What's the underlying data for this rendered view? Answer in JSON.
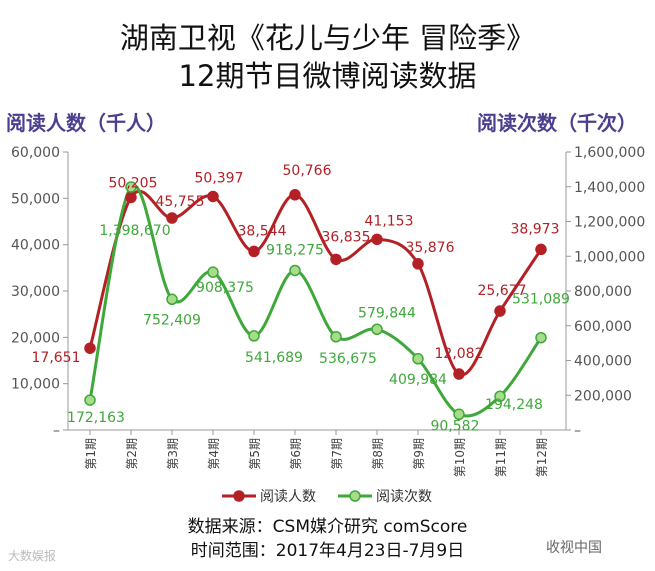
{
  "header": {
    "title_line1": "湖南卫视《花儿与少年 冒险季》",
    "title_line2": "12期节目微博阅读数据"
  },
  "footer": {
    "source": "数据来源：CSM媒介研究 comScore",
    "period": "时间范围：2017年4月23日-7月9日"
  },
  "watermarks": {
    "left": "大数娱报",
    "right": "收视中国"
  },
  "chart_data": {
    "type": "line",
    "left_axis_title": "阅读人数（千人）",
    "right_axis_title": "阅读次数（千次）",
    "categories": [
      "第1期",
      "第2期",
      "第3期",
      "第4期",
      "第5期",
      "第6期",
      "第7期",
      "第8期",
      "第9期",
      "第10期",
      "第11期",
      "第12期"
    ],
    "left_ylim": [
      0,
      60000
    ],
    "left_ticks": [
      "–",
      "10,000",
      "20,000",
      "30,000",
      "40,000",
      "50,000",
      "60,000"
    ],
    "right_ylim": [
      0,
      1600000
    ],
    "right_ticks": [
      "–",
      "200,000",
      "400,000",
      "600,000",
      "800,000",
      "1,000,000",
      "1,200,000",
      "1,400,000",
      "1,600,000"
    ],
    "legend_position": "bottom",
    "grid": false,
    "series": [
      {
        "name": "阅读人数",
        "axis": "left",
        "color": "#b32126",
        "values": [
          17651,
          50205,
          45755,
          50397,
          38544,
          50766,
          36835,
          41153,
          35876,
          12082,
          25677,
          38973
        ],
        "labels": [
          "17,651",
          "50,205",
          "45,755",
          "50,397",
          "38,544",
          "50,766",
          "36,835",
          "41,153",
          "35,876",
          "12,082",
          "25,677",
          "38,973"
        ]
      },
      {
        "name": "阅读次数",
        "axis": "right",
        "color": "#3ea83a",
        "values": [
          172163,
          1398670,
          752409,
          908375,
          541689,
          918275,
          536675,
          579844,
          409984,
          90582,
          194248,
          531089
        ],
        "labels": [
          "172,163",
          "1,398,670",
          "752,409",
          "908,375",
          "541,689",
          "918,275",
          "536,675",
          "579,844",
          "409,984",
          "90,582",
          "194,248",
          "531,089"
        ]
      }
    ]
  }
}
